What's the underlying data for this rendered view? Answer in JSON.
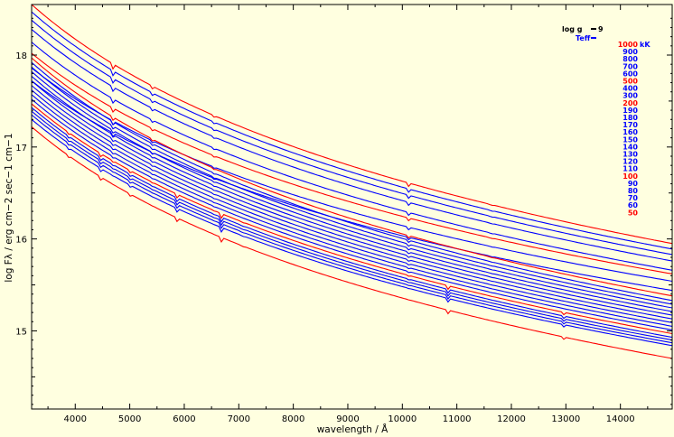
{
  "chart_data": {
    "type": "line",
    "xlabel": "wavelength / Å",
    "ylabel": "log Fλ / erg cm−2 sec−1 cm−1",
    "xlim": [
      3200,
      14950
    ],
    "ylim": [
      14.15,
      18.55
    ],
    "x_ticks": [
      4000,
      5000,
      6000,
      7000,
      8000,
      9000,
      10000,
      11000,
      12000,
      13000,
      14000
    ],
    "y_ticks": [
      15,
      16,
      17,
      18
    ],
    "legend": {
      "logg_label": "log g",
      "logg_value": "9",
      "teff_label": "Teff",
      "unit": "kK",
      "position": "top-right"
    },
    "colors": {
      "highlight": "#ff0000",
      "normal": "#0000ff",
      "background": "#ffffe0"
    },
    "series": [
      {
        "name": "1000",
        "color": "#ff0000",
        "y_start": 18.55,
        "y_end": 15.95
      },
      {
        "name": "900",
        "color": "#0000ff",
        "y_start": 18.47,
        "y_end": 15.89
      },
      {
        "name": "800",
        "color": "#0000ff",
        "y_start": 18.38,
        "y_end": 15.83
      },
      {
        "name": "700",
        "color": "#0000ff",
        "y_start": 18.28,
        "y_end": 15.76
      },
      {
        "name": "600",
        "color": "#0000ff",
        "y_start": 18.14,
        "y_end": 15.66
      },
      {
        "name": "500",
        "color": "#ff0000",
        "y_start": 18.02,
        "y_end": 15.62
      },
      {
        "name": "400",
        "color": "#0000ff",
        "y_start": 17.86,
        "y_end": 15.54
      },
      {
        "name": "300",
        "color": "#0000ff",
        "y_start": 17.72,
        "y_end": 15.44
      },
      {
        "name": "200",
        "color": "#ff0000",
        "y_start": 17.97,
        "y_end": 15.38
      },
      {
        "name": "190",
        "color": "#0000ff",
        "y_start": 17.92,
        "y_end": 15.33
      },
      {
        "name": "180",
        "color": "#0000ff",
        "y_start": 17.87,
        "y_end": 15.29
      },
      {
        "name": "170",
        "color": "#0000ff",
        "y_start": 17.82,
        "y_end": 15.25
      },
      {
        "name": "160",
        "color": "#0000ff",
        "y_start": 17.77,
        "y_end": 15.21
      },
      {
        "name": "150",
        "color": "#0000ff",
        "y_start": 17.72,
        "y_end": 15.17
      },
      {
        "name": "140",
        "color": "#0000ff",
        "y_start": 17.67,
        "y_end": 15.13
      },
      {
        "name": "130",
        "color": "#0000ff",
        "y_start": 17.62,
        "y_end": 15.09
      },
      {
        "name": "120",
        "color": "#0000ff",
        "y_start": 17.57,
        "y_end": 15.05
      },
      {
        "name": "110",
        "color": "#0000ff",
        "y_start": 17.52,
        "y_end": 15.01
      },
      {
        "name": "100",
        "color": "#ff0000",
        "y_start": 17.47,
        "y_end": 14.97
      },
      {
        "name": "90",
        "color": "#0000ff",
        "y_start": 17.43,
        "y_end": 14.93
      },
      {
        "name": "80",
        "color": "#0000ff",
        "y_start": 17.39,
        "y_end": 14.9
      },
      {
        "name": "70",
        "color": "#0000ff",
        "y_start": 17.35,
        "y_end": 14.87
      },
      {
        "name": "60",
        "color": "#0000ff",
        "y_start": 17.3,
        "y_end": 14.84
      },
      {
        "name": "50",
        "color": "#ff0000",
        "y_start": 17.22,
        "y_end": 14.7
      }
    ]
  }
}
